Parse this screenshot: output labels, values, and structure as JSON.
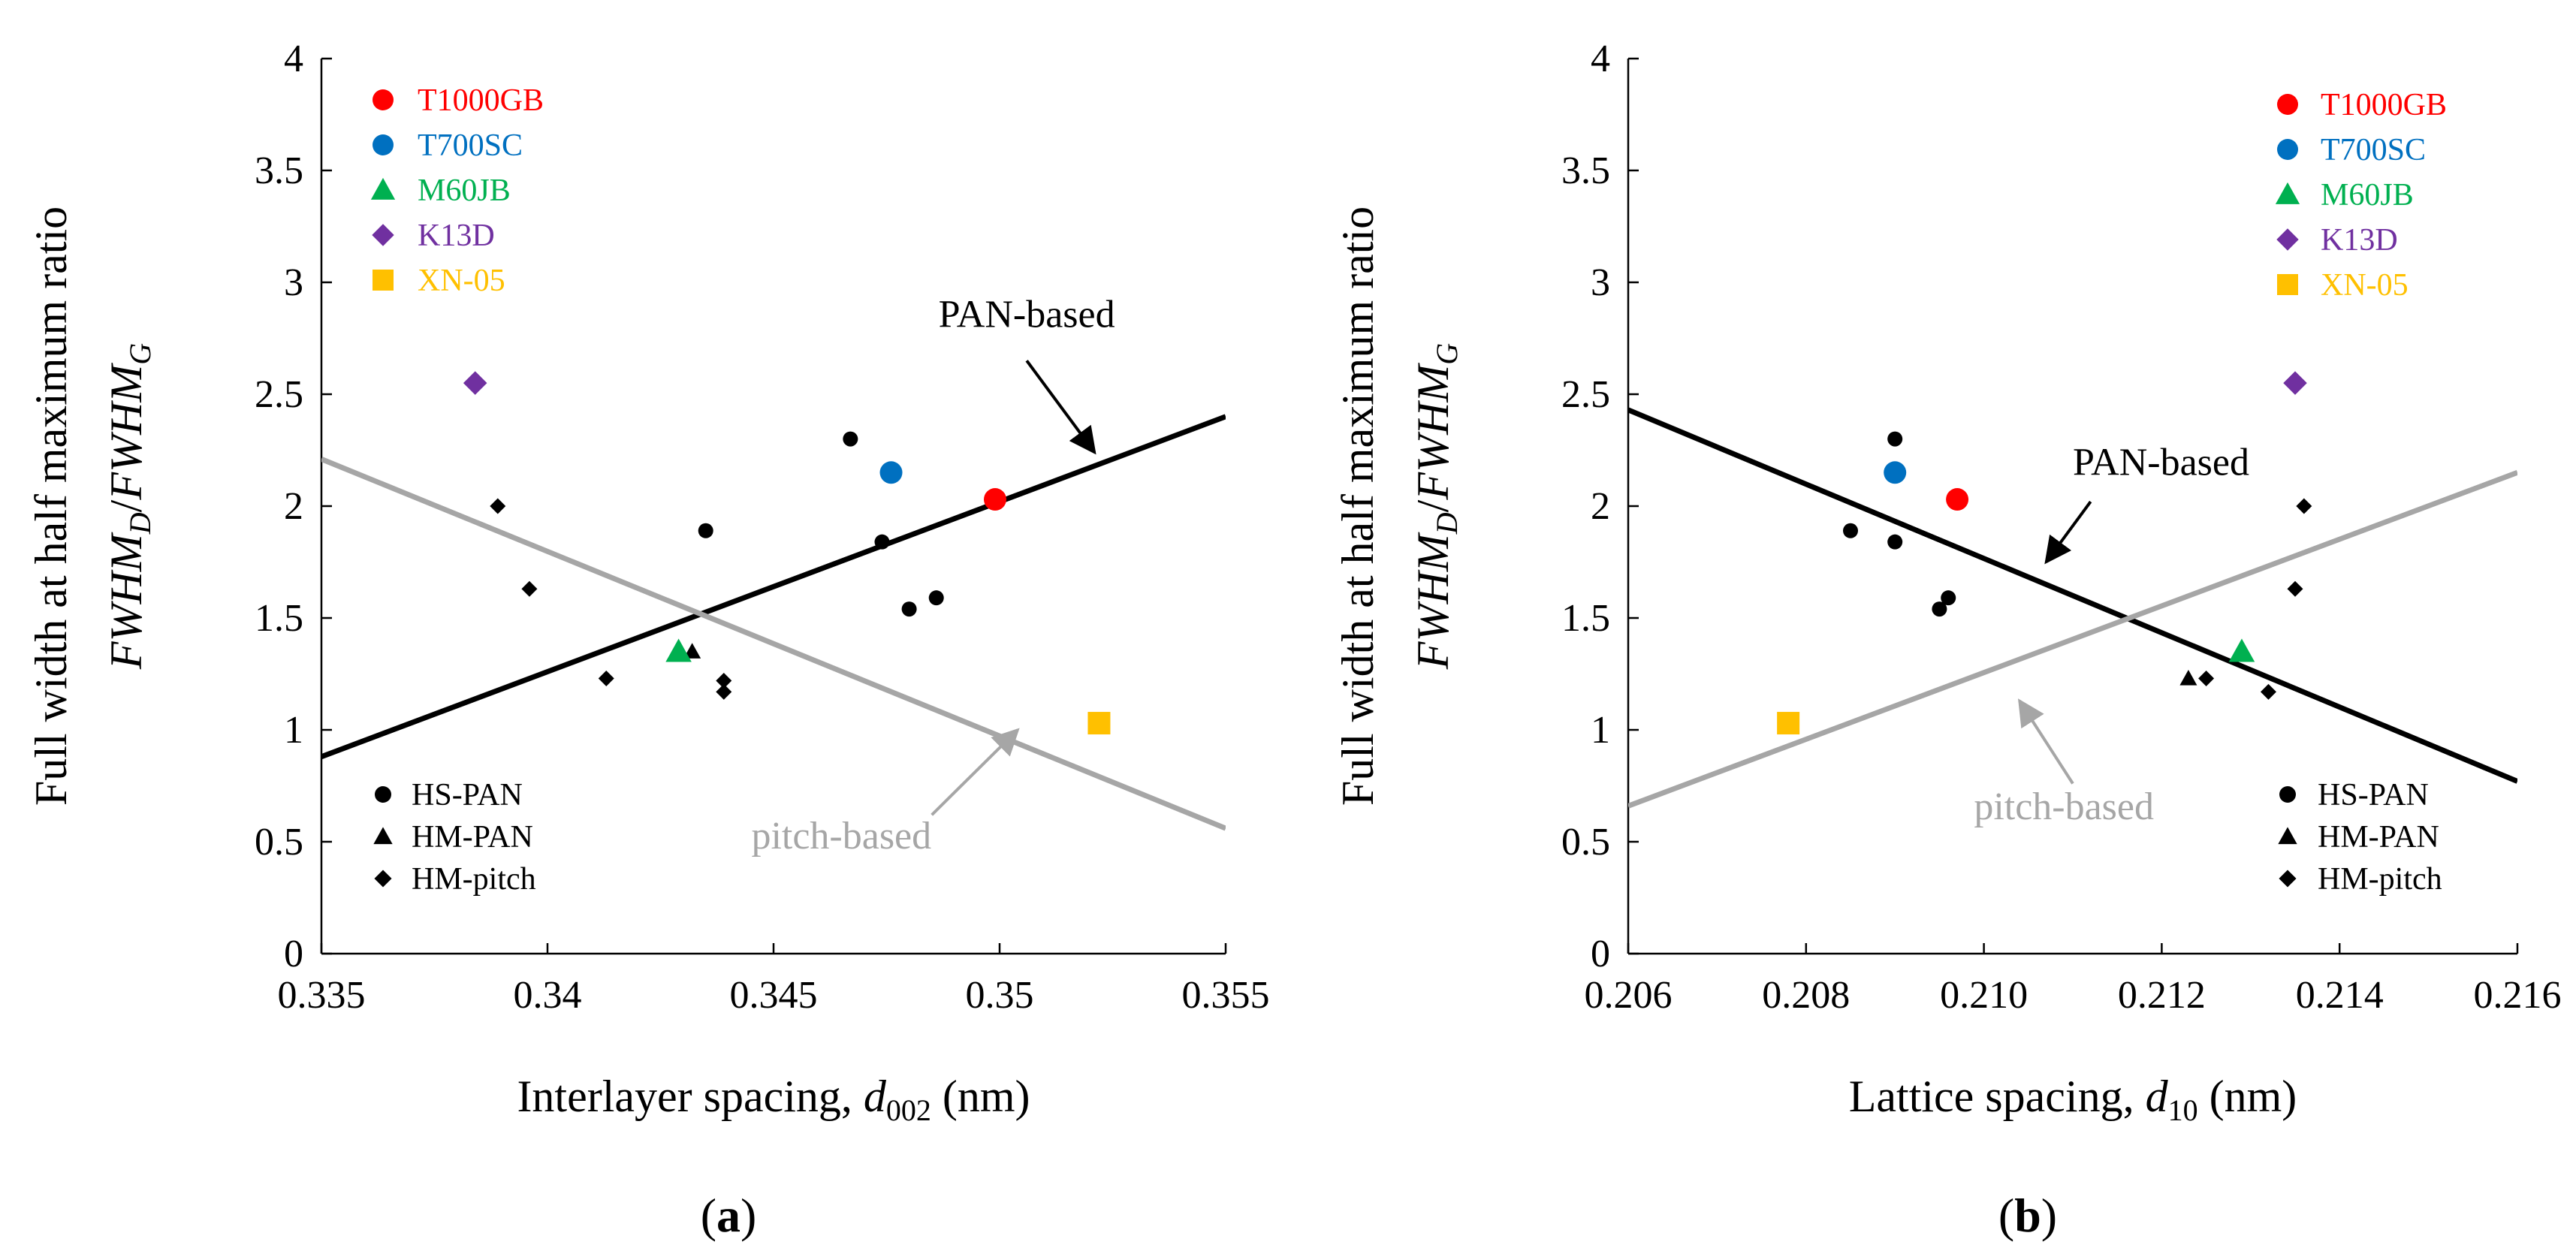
{
  "chart_data": [
    {
      "type": "scatter",
      "panel_label": "a",
      "xlabel": {
        "pre": "Interlayer spacing, ",
        "var": "d",
        "sub": "002",
        "post": " (nm)"
      },
      "ylabel": {
        "line1": "Full width at half maximum ratio",
        "num_var": "FWHM",
        "num_sub": "D",
        "den_var": "FWHM",
        "den_sub": "G"
      },
      "xlim": [
        0.335,
        0.355
      ],
      "ylim": [
        0,
        4
      ],
      "xticks": [
        0.335,
        0.34,
        0.345,
        0.35,
        0.355
      ],
      "xtick_labels": [
        "0.335",
        "0.34",
        "0.345",
        "0.35",
        "0.355"
      ],
      "yticks": [
        0,
        0.5,
        1,
        1.5,
        2,
        2.5,
        3,
        3.5,
        4
      ],
      "ytick_labels": [
        "0",
        "0.5",
        "1",
        "1.5",
        "2",
        "2.5",
        "3",
        "3.5",
        "4"
      ],
      "legend_position": "top-left",
      "legend_named": [
        {
          "name": "T1000GB",
          "color": "#ff0000",
          "marker": "circle"
        },
        {
          "name": "T700SC",
          "color": "#0070c0",
          "marker": "circle"
        },
        {
          "name": "M60JB",
          "color": "#00b050",
          "marker": "triangle"
        },
        {
          "name": "K13D",
          "color": "#7030a0",
          "marker": "diamond"
        },
        {
          "name": "XN-05",
          "color": "#ffc000",
          "marker": "square"
        }
      ],
      "legend_classes_position": "bottom-left",
      "legend_classes": [
        {
          "name": "HS-PAN",
          "marker": "circle"
        },
        {
          "name": "HM-PAN",
          "marker": "triangle"
        },
        {
          "name": "HM-pitch",
          "marker": "diamond"
        }
      ],
      "series": [
        {
          "name": "HS-PAN",
          "marker": "circle",
          "color": "#000000",
          "size": "small",
          "points": [
            [
              0.3435,
              1.89
            ],
            [
              0.3467,
              2.3
            ],
            [
              0.3474,
              1.84
            ],
            [
              0.348,
              1.54
            ],
            [
              0.3486,
              1.59
            ]
          ]
        },
        {
          "name": "HM-PAN",
          "marker": "triangle",
          "color": "#000000",
          "size": "small",
          "points": [
            [
              0.3432,
              1.35
            ]
          ]
        },
        {
          "name": "HM-pitch",
          "marker": "diamond",
          "color": "#000000",
          "size": "small",
          "points": [
            [
              0.3389,
              2.0
            ],
            [
              0.3396,
              1.63
            ],
            [
              0.3413,
              1.23
            ],
            [
              0.3439,
              1.22
            ],
            [
              0.3439,
              1.17
            ]
          ]
        },
        {
          "name": "T1000GB",
          "marker": "circle",
          "color": "#ff0000",
          "size": "large",
          "points": [
            [
              0.3499,
              2.03
            ]
          ]
        },
        {
          "name": "T700SC",
          "marker": "circle",
          "color": "#0070c0",
          "size": "large",
          "points": [
            [
              0.3476,
              2.15
            ]
          ]
        },
        {
          "name": "M60JB",
          "marker": "triangle",
          "color": "#00b050",
          "size": "large",
          "points": [
            [
              0.3429,
              1.35
            ]
          ]
        },
        {
          "name": "K13D",
          "marker": "diamond",
          "color": "#7030a0",
          "size": "large",
          "points": [
            [
              0.3384,
              2.55
            ]
          ]
        },
        {
          "name": "XN-05",
          "marker": "square",
          "color": "#ffc000",
          "size": "large",
          "points": [
            [
              0.3522,
              1.03
            ]
          ]
        }
      ],
      "fit_lines": [
        {
          "name": "PAN-based",
          "color": "#000000",
          "x": [
            0.335,
            0.355
          ],
          "y": [
            0.88,
            2.4
          ]
        },
        {
          "name": "pitch-based",
          "color": "#a6a6a6",
          "x": [
            0.335,
            0.355
          ],
          "y": [
            2.21,
            0.56
          ]
        }
      ],
      "annotations": [
        {
          "text": "PAN-based",
          "color": "#000000",
          "x": 0.3506,
          "y": 2.8,
          "anchor": "middle",
          "arrow_from": [
            0.3506,
            2.65
          ],
          "arrow_to": [
            0.3521,
            2.24
          ]
        },
        {
          "text": "pitch-based",
          "color": "#a6a6a6",
          "x": 0.3465,
          "y": 0.47,
          "anchor": "middle",
          "arrow_from": [
            0.3485,
            0.62
          ],
          "arrow_to": [
            0.3504,
            1.0
          ]
        }
      ]
    },
    {
      "type": "scatter",
      "panel_label": "b",
      "xlabel": {
        "pre": "Lattice spacing, ",
        "var": "d",
        "sub": "10",
        "post": " (nm)"
      },
      "ylabel": {
        "line1": "Full width at half maximum ratio",
        "num_var": "FWHM",
        "num_sub": "D",
        "den_var": "FWHM",
        "den_sub": "G"
      },
      "xlim": [
        0.206,
        0.216
      ],
      "ylim": [
        0,
        4
      ],
      "xticks": [
        0.206,
        0.208,
        0.21,
        0.212,
        0.214,
        0.216
      ],
      "xtick_labels": [
        "0.206",
        "0.208",
        "0.210",
        "0.212",
        "0.214",
        "0.216"
      ],
      "yticks": [
        0,
        0.5,
        1,
        1.5,
        2,
        2.5,
        3,
        3.5,
        4
      ],
      "ytick_labels": [
        "0",
        "0.5",
        "1",
        "1.5",
        "2",
        "2.5",
        "3",
        "3.5",
        "4"
      ],
      "legend_position": "top-right",
      "legend_named": [
        {
          "name": "T1000GB",
          "color": "#ff0000",
          "marker": "circle"
        },
        {
          "name": "T700SC",
          "color": "#0070c0",
          "marker": "circle"
        },
        {
          "name": "M60JB",
          "color": "#00b050",
          "marker": "triangle"
        },
        {
          "name": "K13D",
          "color": "#7030a0",
          "marker": "diamond"
        },
        {
          "name": "XN-05",
          "color": "#ffc000",
          "marker": "square"
        }
      ],
      "legend_classes_position": "bottom-right",
      "legend_classes": [
        {
          "name": "HS-PAN",
          "marker": "circle"
        },
        {
          "name": "HM-PAN",
          "marker": "triangle"
        },
        {
          "name": "HM-pitch",
          "marker": "diamond"
        }
      ],
      "series": [
        {
          "name": "HS-PAN",
          "marker": "circle",
          "color": "#000000",
          "size": "small",
          "points": [
            [
              0.2085,
              1.89
            ],
            [
              0.209,
              2.3
            ],
            [
              0.209,
              1.84
            ],
            [
              0.2095,
              1.54
            ],
            [
              0.2096,
              1.59
            ]
          ]
        },
        {
          "name": "HM-PAN",
          "marker": "triangle",
          "color": "#000000",
          "size": "small",
          "points": [
            [
              0.2123,
              1.23
            ]
          ]
        },
        {
          "name": "HM-pitch",
          "marker": "diamond",
          "color": "#000000",
          "size": "small",
          "points": [
            [
              0.2136,
              2.0
            ],
            [
              0.2135,
              1.63
            ],
            [
              0.2125,
              1.23
            ],
            [
              0.2132,
              1.17
            ]
          ]
        },
        {
          "name": "T1000GB",
          "marker": "circle",
          "color": "#ff0000",
          "size": "large",
          "points": [
            [
              0.2097,
              2.03
            ]
          ]
        },
        {
          "name": "T700SC",
          "marker": "circle",
          "color": "#0070c0",
          "size": "large",
          "points": [
            [
              0.209,
              2.15
            ]
          ]
        },
        {
          "name": "M60JB",
          "marker": "triangle",
          "color": "#00b050",
          "size": "large",
          "points": [
            [
              0.2129,
              1.35
            ]
          ]
        },
        {
          "name": "K13D",
          "marker": "diamond",
          "color": "#7030a0",
          "size": "large",
          "points": [
            [
              0.2135,
              2.55
            ]
          ]
        },
        {
          "name": "XN-05",
          "marker": "square",
          "color": "#ffc000",
          "size": "large",
          "points": [
            [
              0.2078,
              1.03
            ]
          ]
        }
      ],
      "fit_lines": [
        {
          "name": "PAN-based",
          "color": "#000000",
          "x": [
            0.206,
            0.216
          ],
          "y": [
            2.43,
            0.77
          ]
        },
        {
          "name": "pitch-based",
          "color": "#a6a6a6",
          "x": [
            0.206,
            0.216
          ],
          "y": [
            0.66,
            2.15
          ]
        }
      ],
      "annotations": [
        {
          "text": "PAN-based",
          "color": "#000000",
          "x": 0.211,
          "y": 2.14,
          "anchor": "start",
          "arrow_from": [
            0.2112,
            2.02
          ],
          "arrow_to": [
            0.2107,
            1.75
          ]
        },
        {
          "text": "pitch-based",
          "color": "#a6a6a6",
          "x": 0.2109,
          "y": 0.6,
          "anchor": "middle",
          "arrow_from": [
            0.211,
            0.76
          ],
          "arrow_to": [
            0.2104,
            1.13
          ]
        }
      ]
    }
  ]
}
